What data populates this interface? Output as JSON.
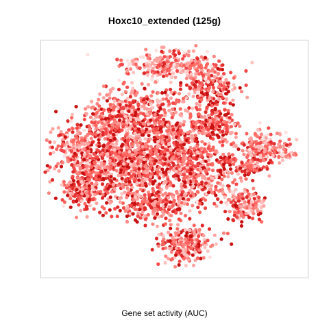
{
  "chart_data": {
    "type": "scatter",
    "title": "Hoxc10_extended (125g)",
    "xlabel": "Gene set activity (AUC)",
    "ylabel": "",
    "axes_shown": false,
    "grid": false,
    "legend": "none",
    "point_colors": [
      "#ffe0de",
      "#ffc2bf",
      "#ffa3a0",
      "#ff8580",
      "#ff6660",
      "#f54848",
      "#e02a2a",
      "#c81010"
    ],
    "panel_border_color": "#cccccc"
  }
}
